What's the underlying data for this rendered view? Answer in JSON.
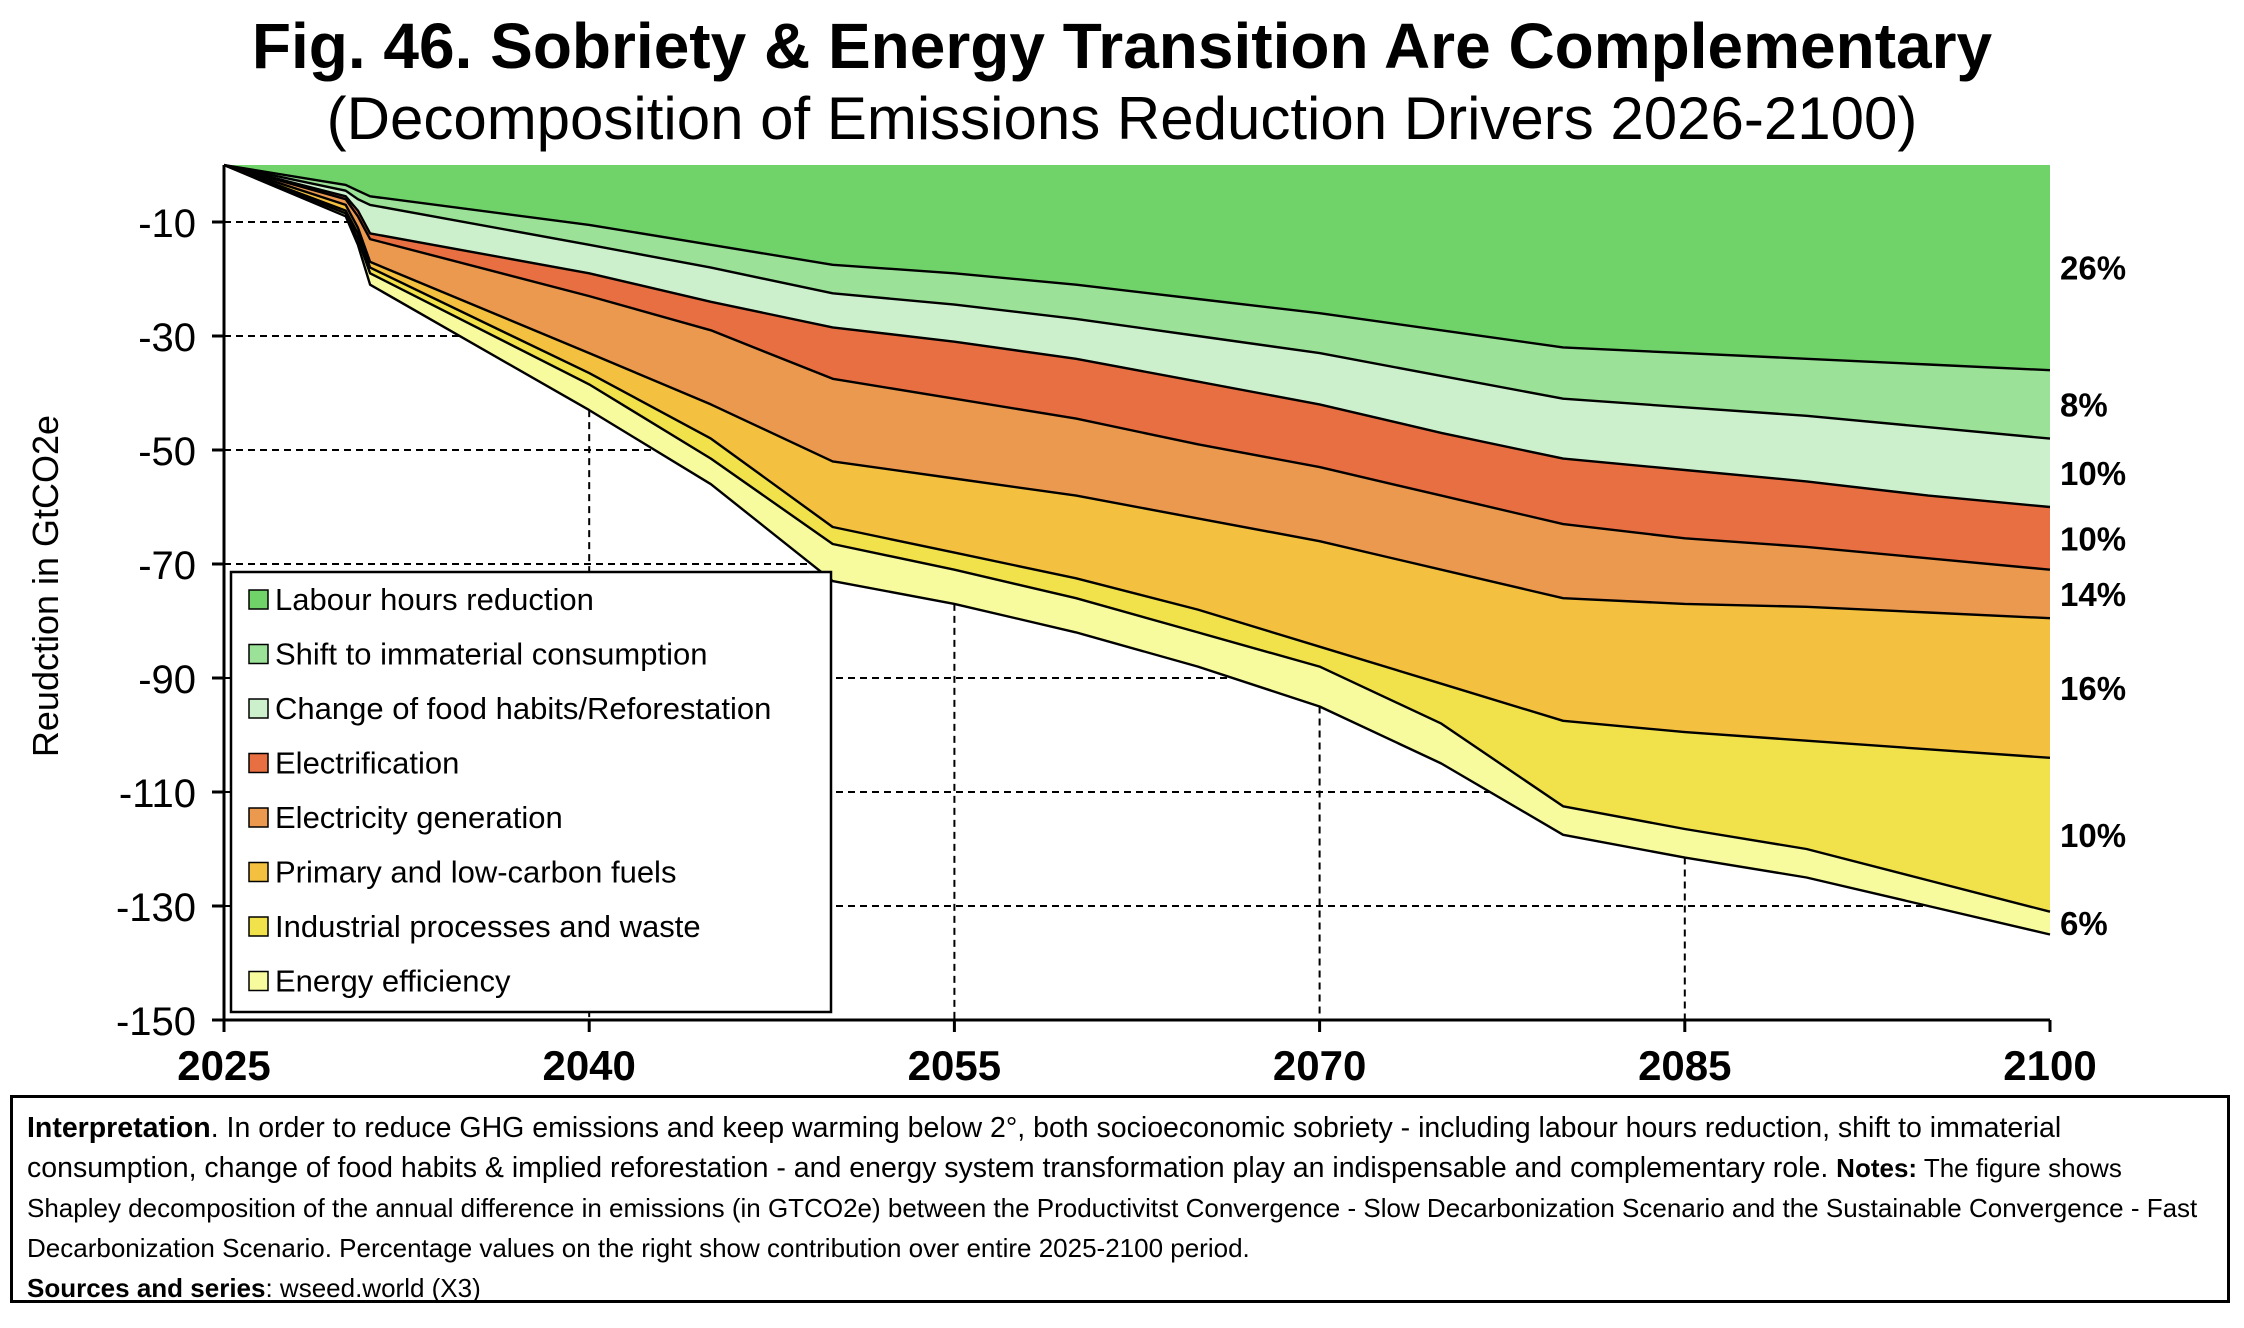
{
  "title": "Fig. 46. Sobriety & Energy Transition Are Complementary",
  "subtitle": "(Decomposition of Emissions Reduction Drivers 2026-2100)",
  "chart_data": {
    "type": "area",
    "stacking": "cumulative-negative",
    "xlabel": "",
    "ylabel": "Reudction in GtCO2e",
    "xlim": [
      2025,
      2100
    ],
    "ylim": [
      -150,
      0
    ],
    "xticks": [
      "2025",
      "2040",
      "2055",
      "2070",
      "2085",
      "2100"
    ],
    "yticks": [
      "-10",
      "-30",
      "-50",
      "-70",
      "-90",
      "-110",
      "-130",
      "-150"
    ],
    "grid": "dashed",
    "legend_position": "bottom-left",
    "x": [
      2025,
      2030,
      2030.5,
      2031,
      2040,
      2045,
      2050,
      2055,
      2060,
      2065,
      2070,
      2075,
      2080,
      2085,
      2090,
      2095,
      2100
    ],
    "series": [
      {
        "name": "Labour hours reduction",
        "color": "#70d36a",
        "share_label": "26%",
        "cumulative": [
          0,
          -3.5,
          -4.5,
          -5.5,
          -10.5,
          -14,
          -17.5,
          -19,
          -21,
          -23.5,
          -26,
          -29,
          -32,
          -33,
          -34,
          -35,
          -36
        ]
      },
      {
        "name": "Shift to immaterial consumption",
        "color": "#9be197",
        "share_label": "8%",
        "cumulative": [
          0,
          -4.5,
          -6,
          -7,
          -14,
          -18,
          -22.5,
          -24.5,
          -27,
          -30,
          -33,
          -37,
          -41,
          -42.5,
          -44,
          -46,
          -48
        ]
      },
      {
        "name": "Change of food habits/Reforestation",
        "color": "#cdf0cc",
        "share_label": "10%",
        "cumulative": [
          0,
          -5.5,
          -8,
          -12,
          -19,
          -24,
          -28.5,
          -31,
          -34,
          -38,
          -42,
          -47,
          -51.5,
          -53.5,
          -55.5,
          -58,
          -60
        ]
      },
      {
        "name": "Electrification",
        "color": "#e86f42",
        "share_label": "10%",
        "cumulative": [
          0,
          -6,
          -9,
          -13,
          -23,
          -29,
          -37.5,
          -41,
          -44.5,
          -49,
          -53,
          -58,
          -63,
          -65.5,
          -67,
          -69,
          -71
        ]
      },
      {
        "name": "Electricity generation",
        "color": "#ec9950",
        "share_label": "14%",
        "cumulative": [
          0,
          -7,
          -11,
          -17,
          -33,
          -42,
          -52,
          -55,
          -58,
          -62,
          -66,
          -71,
          -76,
          -77,
          -77.5,
          -78.5,
          -79.5
        ]
      },
      {
        "name": "Primary and low-carbon fuels",
        "color": "#f4c040",
        "share_label": "16%",
        "cumulative": [
          0,
          -8,
          -12,
          -18,
          -36.5,
          -48,
          -63.5,
          -68,
          -72.5,
          -78,
          -84.5,
          -91,
          -97.5,
          -99.5,
          -101,
          -102.5,
          -104
        ]
      },
      {
        "name": "Industrial processes and waste",
        "color": "#f1e24b",
        "share_label": "10%",
        "cumulative": [
          0,
          -8.5,
          -13,
          -19,
          -38.5,
          -51.5,
          -66.5,
          -71,
          -76,
          -82,
          -88,
          -98,
          -112.5,
          -116.5,
          -120,
          -125.5,
          -131
        ]
      },
      {
        "name": "Energy efficiency",
        "color": "#f7fb9e",
        "share_label": "6%",
        "cumulative": [
          0,
          -9,
          -14,
          -21,
          -43,
          -56,
          -73,
          -77,
          -82,
          -88,
          -95,
          -105,
          -117.5,
          -121.5,
          -125,
          -130,
          -135
        ]
      }
    ]
  },
  "interpretation": {
    "lead": "Interpretation",
    "text": ". In order to reduce GHG emissions and keep warming below 2°, both socioeconomic sobriety - including labour hours reduction, shift to immaterial consumption, change of food habits & implied reforestation - and energy system transformation play an indispensable and complementary role.",
    "notes_lead": "Notes:",
    "notes_text": " The figure shows Shapley decomposition of the annual difference in emissions (in GTCO2e) between the Productivitst Convergence - Slow Decarbonization Scenario and the Sustainable Convergence - Fast Decarbonization Scenario. Percentage values on the right show contribution over entire 2025-2100 period.",
    "sources_lead": "Sources and series",
    "sources_text": ": wseed.world (X3)"
  }
}
